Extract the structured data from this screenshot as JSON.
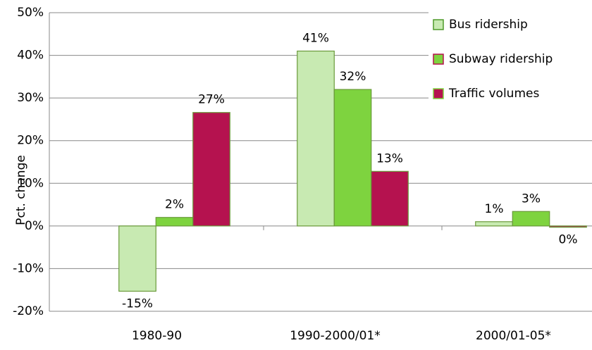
{
  "chart_data": {
    "type": "bar",
    "y_label": "Pct. change",
    "categories": [
      "1980-90",
      "1990-2000/01*",
      "2000/01-05*"
    ],
    "series": [
      {
        "name": "Bus ridership",
        "color": "#c8eab2",
        "edge": "#4f9a2a",
        "values": [
          -15.3,
          41,
          1
        ],
        "value_labels": [
          "-15%",
          "41%",
          "1%"
        ]
      },
      {
        "name": "Subway ridership",
        "color": "#7ed33f",
        "edge": "#b5124f",
        "values": [
          2,
          32,
          3.4
        ],
        "value_labels": [
          "2%",
          "32%",
          "3%"
        ]
      },
      {
        "name": "Traffic volumes",
        "color": "#b5124f",
        "edge": "#7ed33f",
        "values": [
          26.6,
          12.8,
          -0.3
        ],
        "value_labels": [
          "27%",
          "13%",
          "0%"
        ]
      }
    ],
    "ylim": [
      -20,
      50
    ],
    "yticks": [
      {
        "value": -20,
        "label": "-20%"
      },
      {
        "value": -10,
        "label": "-10%"
      },
      {
        "value": 0,
        "label": "0%"
      },
      {
        "value": 10,
        "label": "10%"
      },
      {
        "value": 20,
        "label": "20%"
      },
      {
        "value": 30,
        "label": "30%"
      },
      {
        "value": 40,
        "label": "40%"
      },
      {
        "value": 50,
        "label": "50%"
      }
    ],
    "grid": true,
    "legend": "top-right"
  }
}
